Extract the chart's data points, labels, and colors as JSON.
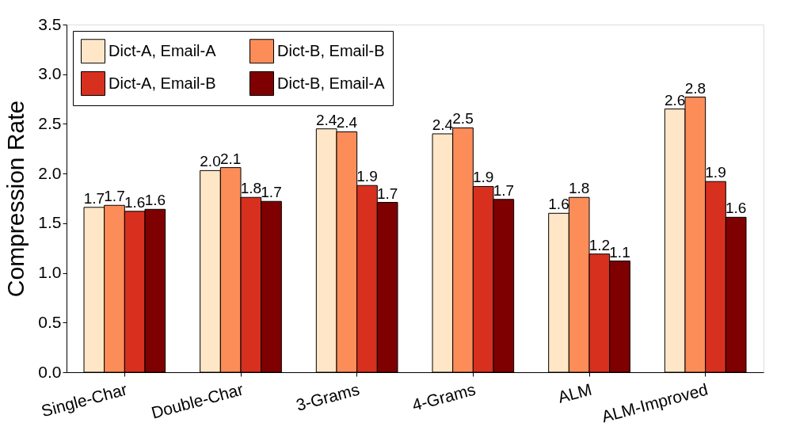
{
  "chart_data": {
    "type": "bar",
    "ylabel": "Compression Rate",
    "categories": [
      "Single-Char",
      "Double-Char",
      "3-Grams",
      "4-Grams",
      "ALM",
      "ALM-Improved"
    ],
    "series": [
      {
        "name": "Dict-A, Email-A",
        "color": "#fee6c6",
        "values": [
          1.66,
          2.03,
          2.45,
          2.4,
          1.6,
          2.65
        ],
        "value_labels": [
          "1.7",
          "2.0",
          "2.4",
          "2.4",
          "1.6",
          "2.6"
        ]
      },
      {
        "name": "Dict-B, Email-B",
        "color": "#fc8d59",
        "values": [
          1.68,
          2.06,
          2.42,
          2.46,
          1.76,
          2.77
        ],
        "value_labels": [
          "1.7",
          "2.1",
          "2.4",
          "2.5",
          "1.8",
          "2.8"
        ]
      },
      {
        "name": "Dict-A, Email-B",
        "color": "#d7301f",
        "values": [
          1.62,
          1.76,
          1.88,
          1.87,
          1.19,
          1.92
        ],
        "value_labels": [
          "1.6",
          "1.8",
          "1.9",
          "1.9",
          "1.2",
          "1.9"
        ]
      },
      {
        "name": "Dict-B, Email-A",
        "color": "#7f0000",
        "values": [
          1.64,
          1.72,
          1.71,
          1.74,
          1.12,
          1.56
        ],
        "value_labels": [
          "1.6",
          "1.7",
          "1.7",
          "1.7",
          "1.1",
          "1.6"
        ]
      }
    ],
    "ylim": [
      0,
      3.5
    ],
    "yticks": [
      {
        "value": 0,
        "label": "0.0"
      },
      0.5,
      {
        "value": 1,
        "label": "1.0"
      },
      1.5,
      {
        "value": 2,
        "label": "2.0"
      },
      2.5,
      {
        "value": 3,
        "label": "3.0"
      },
      3.5
    ],
    "grid": false,
    "legend": "top left"
  }
}
